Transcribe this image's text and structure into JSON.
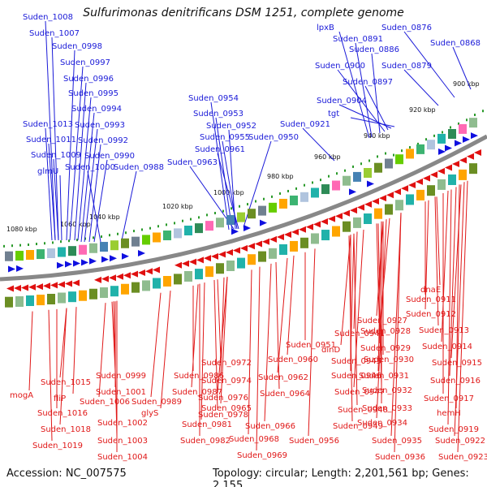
{
  "title": "Sulfurimonas denitrificans DSM 1251, complete genome",
  "footer": {
    "accession": "Accession: NC_007575",
    "topology": "Topology: circular; Length: 2,201,561 bp; Genes: 2,155"
  },
  "colors": {
    "forward_gene": "#1010e0",
    "reverse_gene": "#e01010",
    "backbone": "#888888",
    "tick": "#1f8f1f"
  },
  "ticks": [
    "1080 kbp",
    "1060 kbp",
    "1040 kbp",
    "1020 kbp",
    "1000 kbp",
    "980 kbp",
    "960 kbp",
    "940 kbp",
    "920 kbp",
    "900 kbp"
  ],
  "upper_labels": [
    "Suden_1008",
    "Suden_1007",
    "Suden_0998",
    "Suden_0997",
    "Suden_0996",
    "Suden_0995",
    "Suden_0994",
    "Suden_1013",
    "Suden_0993",
    "Suden_1011",
    "Suden_0992",
    "Suden_1009",
    "Suden_0990",
    "glmU",
    "Suden_1000",
    "Suden_0988",
    "Suden_0954",
    "Suden_0953",
    "Suden_0952",
    "Suden_0955",
    "Suden_0950",
    "Suden_0961",
    "Suden_0963",
    "Suden_0921",
    "lpxB",
    "Suden_0891",
    "Suden_0876",
    "Suden_0886",
    "Suden_0868",
    "Suden_0900",
    "Suden_0879",
    "Suden_0897",
    "Suden_0904",
    "tgt"
  ],
  "lower_labels": [
    "dnaE",
    "Suden_0911",
    "Suden_0912",
    "Suden_0927",
    "Suden_0928",
    "Suden_0913",
    "Suden_0951",
    "Suden_0941",
    "Suden_0914",
    "dinD",
    "Suden_0929",
    "Suden_0930",
    "Suden_0945",
    "Suden_0960",
    "Suden_0915",
    "Suden_0972",
    "Suden_0946",
    "Suden_0931",
    "Suden_0916",
    "Suden_0962",
    "Suden_0999",
    "Suden_0986",
    "Suden_0974",
    "Suden_1015",
    "Suden_0947",
    "Suden_0932",
    "Suden_0917",
    "mogA",
    "Suden_0987",
    "Suden_0976",
    "Suden_0964",
    "Suden_1001",
    "fliP",
    "Suden_1006",
    "Suden_0989",
    "Suden_0948",
    "Suden_0933",
    "hemH",
    "Suden_0965",
    "glyS",
    "Suden_0978",
    "Suden_1016",
    "Suden_0981",
    "Suden_0966",
    "Suden_0934",
    "Suden_0949",
    "Suden_1002",
    "Suden_0919",
    "Suden_1018",
    "Suden_0922",
    "Suden_1003",
    "Suden_0982",
    "Suden_0968",
    "Suden_0956",
    "Suden_0935",
    "Suden_1019",
    "Suden_1004",
    "Suden_0969",
    "Suden_0936",
    "Suden_0923"
  ]
}
